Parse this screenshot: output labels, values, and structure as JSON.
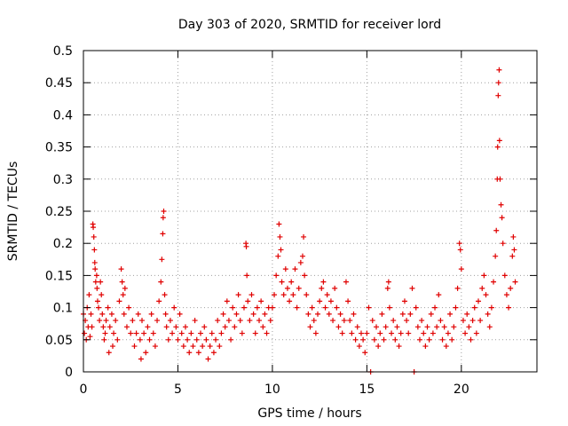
{
  "chart_data": {
    "type": "scatter",
    "title": "Day 303 of 2020, SRMTID for receiver lord",
    "xlabel": "GPS time / hours",
    "ylabel": "SRMTID / TECUs",
    "xlim": [
      0,
      24
    ],
    "ylim": [
      0,
      0.5
    ],
    "xticks": [
      0,
      5,
      10,
      15,
      20
    ],
    "xtick_labels": [
      "0",
      "5",
      "10",
      "15",
      "20"
    ],
    "yticks": [
      0,
      0.05,
      0.1,
      0.15,
      0.2,
      0.25,
      0.3,
      0.35,
      0.4,
      0.45,
      0.5
    ],
    "ytick_labels": [
      "0",
      "0.05",
      "0.1",
      "0.15",
      "0.2",
      "0.25",
      "0.3",
      "0.35",
      "0.4",
      "0.45",
      "0.5"
    ],
    "grid": true,
    "marker": "+",
    "color": "#e00000",
    "series": [
      {
        "name": "SRMTID",
        "points": [
          [
            0.0,
            0.09
          ],
          [
            0.05,
            0.06
          ],
          [
            0.1,
            0.08
          ],
          [
            0.15,
            0.05
          ],
          [
            0.2,
            0.1
          ],
          [
            0.25,
            0.07
          ],
          [
            0.3,
            0.12
          ],
          [
            0.35,
            0.055
          ],
          [
            0.4,
            0.09
          ],
          [
            0.45,
            0.07
          ],
          [
            0.5,
            0.23
          ],
          [
            0.52,
            0.225
          ],
          [
            0.55,
            0.21
          ],
          [
            0.58,
            0.19
          ],
          [
            0.6,
            0.17
          ],
          [
            0.62,
            0.16
          ],
          [
            0.65,
            0.14
          ],
          [
            0.7,
            0.15
          ],
          [
            0.72,
            0.13
          ],
          [
            0.75,
            0.11
          ],
          [
            0.8,
            0.1
          ],
          [
            0.85,
            0.08
          ],
          [
            0.9,
            0.14
          ],
          [
            0.95,
            0.12
          ],
          [
            1.0,
            0.09
          ],
          [
            1.05,
            0.07
          ],
          [
            1.1,
            0.05
          ],
          [
            1.15,
            0.06
          ],
          [
            1.2,
            0.08
          ],
          [
            1.3,
            0.1
          ],
          [
            1.35,
            0.03
          ],
          [
            1.4,
            0.07
          ],
          [
            1.5,
            0.09
          ],
          [
            1.55,
            0.04
          ],
          [
            1.6,
            0.06
          ],
          [
            1.7,
            0.08
          ],
          [
            1.8,
            0.05
          ],
          [
            1.9,
            0.11
          ],
          [
            2.0,
            0.16
          ],
          [
            2.05,
            0.14
          ],
          [
            2.1,
            0.12
          ],
          [
            2.15,
            0.09
          ],
          [
            2.2,
            0.13
          ],
          [
            2.3,
            0.07
          ],
          [
            2.4,
            0.1
          ],
          [
            2.5,
            0.06
          ],
          [
            2.6,
            0.08
          ],
          [
            2.7,
            0.04
          ],
          [
            2.8,
            0.06
          ],
          [
            2.9,
            0.09
          ],
          [
            3.0,
            0.05
          ],
          [
            3.05,
            0.02
          ],
          [
            3.1,
            0.08
          ],
          [
            3.2,
            0.06
          ],
          [
            3.3,
            0.03
          ],
          [
            3.4,
            0.07
          ],
          [
            3.5,
            0.05
          ],
          [
            3.6,
            0.09
          ],
          [
            3.7,
            0.06
          ],
          [
            3.8,
            0.04
          ],
          [
            3.9,
            0.08
          ],
          [
            4.0,
            0.11
          ],
          [
            4.1,
            0.14
          ],
          [
            4.15,
            0.175
          ],
          [
            4.2,
            0.215
          ],
          [
            4.22,
            0.24
          ],
          [
            4.25,
            0.25
          ],
          [
            4.3,
            0.12
          ],
          [
            4.35,
            0.09
          ],
          [
            4.4,
            0.07
          ],
          [
            4.5,
            0.05
          ],
          [
            4.6,
            0.08
          ],
          [
            4.7,
            0.06
          ],
          [
            4.8,
            0.1
          ],
          [
            4.9,
            0.07
          ],
          [
            5.0,
            0.05
          ],
          [
            5.1,
            0.09
          ],
          [
            5.2,
            0.06
          ],
          [
            5.3,
            0.04
          ],
          [
            5.4,
            0.07
          ],
          [
            5.5,
            0.05
          ],
          [
            5.6,
            0.03
          ],
          [
            5.7,
            0.06
          ],
          [
            5.8,
            0.04
          ],
          [
            5.9,
            0.08
          ],
          [
            6.0,
            0.05
          ],
          [
            6.1,
            0.03
          ],
          [
            6.2,
            0.06
          ],
          [
            6.3,
            0.04
          ],
          [
            6.4,
            0.07
          ],
          [
            6.5,
            0.05
          ],
          [
            6.6,
            0.02
          ],
          [
            6.7,
            0.04
          ],
          [
            6.8,
            0.06
          ],
          [
            6.9,
            0.03
          ],
          [
            7.0,
            0.05
          ],
          [
            7.1,
            0.08
          ],
          [
            7.2,
            0.04
          ],
          [
            7.3,
            0.06
          ],
          [
            7.4,
            0.09
          ],
          [
            7.5,
            0.07
          ],
          [
            7.6,
            0.11
          ],
          [
            7.7,
            0.08
          ],
          [
            7.8,
            0.05
          ],
          [
            7.9,
            0.1
          ],
          [
            8.0,
            0.07
          ],
          [
            8.1,
            0.09
          ],
          [
            8.2,
            0.12
          ],
          [
            8.3,
            0.08
          ],
          [
            8.4,
            0.06
          ],
          [
            8.5,
            0.1
          ],
          [
            8.6,
            0.2
          ],
          [
            8.62,
            0.195
          ],
          [
            8.65,
            0.15
          ],
          [
            8.7,
            0.11
          ],
          [
            8.8,
            0.08
          ],
          [
            8.9,
            0.12
          ],
          [
            9.0,
            0.09
          ],
          [
            9.1,
            0.06
          ],
          [
            9.2,
            0.1
          ],
          [
            9.3,
            0.08
          ],
          [
            9.4,
            0.11
          ],
          [
            9.5,
            0.07
          ],
          [
            9.6,
            0.09
          ],
          [
            9.7,
            0.06
          ],
          [
            9.8,
            0.1
          ],
          [
            9.9,
            0.08
          ],
          [
            10.0,
            0.1
          ],
          [
            10.1,
            0.12
          ],
          [
            10.2,
            0.15
          ],
          [
            10.3,
            0.18
          ],
          [
            10.35,
            0.23
          ],
          [
            10.4,
            0.21
          ],
          [
            10.45,
            0.19
          ],
          [
            10.5,
            0.14
          ],
          [
            10.6,
            0.12
          ],
          [
            10.7,
            0.16
          ],
          [
            10.8,
            0.13
          ],
          [
            10.9,
            0.11
          ],
          [
            11.0,
            0.14
          ],
          [
            11.1,
            0.12
          ],
          [
            11.2,
            0.16
          ],
          [
            11.3,
            0.1
          ],
          [
            11.4,
            0.13
          ],
          [
            11.5,
            0.17
          ],
          [
            11.6,
            0.18
          ],
          [
            11.65,
            0.21
          ],
          [
            11.7,
            0.15
          ],
          [
            11.8,
            0.12
          ],
          [
            11.9,
            0.09
          ],
          [
            12.0,
            0.07
          ],
          [
            12.1,
            0.1
          ],
          [
            12.2,
            0.08
          ],
          [
            12.3,
            0.06
          ],
          [
            12.4,
            0.09
          ],
          [
            12.5,
            0.11
          ],
          [
            12.6,
            0.13
          ],
          [
            12.7,
            0.14
          ],
          [
            12.8,
            0.1
          ],
          [
            12.9,
            0.12
          ],
          [
            13.0,
            0.09
          ],
          [
            13.1,
            0.11
          ],
          [
            13.2,
            0.08
          ],
          [
            13.3,
            0.13
          ],
          [
            13.4,
            0.1
          ],
          [
            13.5,
            0.07
          ],
          [
            13.6,
            0.09
          ],
          [
            13.7,
            0.06
          ],
          [
            13.8,
            0.08
          ],
          [
            13.9,
            0.14
          ],
          [
            14.0,
            0.11
          ],
          [
            14.1,
            0.08
          ],
          [
            14.2,
            0.06
          ],
          [
            14.3,
            0.09
          ],
          [
            14.4,
            0.05
          ],
          [
            14.5,
            0.07
          ],
          [
            14.6,
            0.04
          ],
          [
            14.7,
            0.06
          ],
          [
            14.8,
            0.05
          ],
          [
            14.9,
            0.03
          ],
          [
            15.0,
            0.06
          ],
          [
            15.1,
            0.1
          ],
          [
            15.2,
            0.0
          ],
          [
            15.3,
            0.08
          ],
          [
            15.4,
            0.05
          ],
          [
            15.5,
            0.07
          ],
          [
            15.6,
            0.04
          ],
          [
            15.7,
            0.06
          ],
          [
            15.8,
            0.09
          ],
          [
            15.9,
            0.05
          ],
          [
            16.0,
            0.07
          ],
          [
            16.1,
            0.13
          ],
          [
            16.15,
            0.14
          ],
          [
            16.2,
            0.1
          ],
          [
            16.3,
            0.06
          ],
          [
            16.4,
            0.08
          ],
          [
            16.5,
            0.05
          ],
          [
            16.6,
            0.07
          ],
          [
            16.7,
            0.04
          ],
          [
            16.8,
            0.06
          ],
          [
            16.9,
            0.09
          ],
          [
            17.0,
            0.11
          ],
          [
            17.1,
            0.08
          ],
          [
            17.2,
            0.06
          ],
          [
            17.3,
            0.09
          ],
          [
            17.4,
            0.13
          ],
          [
            17.5,
            0.0
          ],
          [
            17.6,
            0.1
          ],
          [
            17.7,
            0.07
          ],
          [
            17.8,
            0.05
          ],
          [
            17.9,
            0.08
          ],
          [
            18.0,
            0.06
          ],
          [
            18.1,
            0.04
          ],
          [
            18.2,
            0.07
          ],
          [
            18.3,
            0.05
          ],
          [
            18.4,
            0.09
          ],
          [
            18.5,
            0.06
          ],
          [
            18.6,
            0.1
          ],
          [
            18.7,
            0.07
          ],
          [
            18.8,
            0.12
          ],
          [
            18.9,
            0.08
          ],
          [
            19.0,
            0.05
          ],
          [
            19.1,
            0.07
          ],
          [
            19.2,
            0.04
          ],
          [
            19.3,
            0.06
          ],
          [
            19.4,
            0.09
          ],
          [
            19.5,
            0.05
          ],
          [
            19.6,
            0.07
          ],
          [
            19.7,
            0.1
          ],
          [
            19.8,
            0.13
          ],
          [
            19.9,
            0.2
          ],
          [
            19.95,
            0.19
          ],
          [
            20.0,
            0.16
          ],
          [
            20.1,
            0.08
          ],
          [
            20.2,
            0.06
          ],
          [
            20.3,
            0.09
          ],
          [
            20.4,
            0.07
          ],
          [
            20.5,
            0.05
          ],
          [
            20.6,
            0.08
          ],
          [
            20.7,
            0.1
          ],
          [
            20.8,
            0.06
          ],
          [
            20.9,
            0.11
          ],
          [
            21.0,
            0.08
          ],
          [
            21.1,
            0.13
          ],
          [
            21.2,
            0.15
          ],
          [
            21.3,
            0.12
          ],
          [
            21.4,
            0.09
          ],
          [
            21.5,
            0.07
          ],
          [
            21.6,
            0.1
          ],
          [
            21.7,
            0.14
          ],
          [
            21.8,
            0.18
          ],
          [
            21.85,
            0.22
          ],
          [
            21.9,
            0.3
          ],
          [
            21.92,
            0.35
          ],
          [
            21.95,
            0.43
          ],
          [
            21.97,
            0.45
          ],
          [
            22.0,
            0.47
          ],
          [
            22.02,
            0.36
          ],
          [
            22.05,
            0.3
          ],
          [
            22.1,
            0.26
          ],
          [
            22.15,
            0.24
          ],
          [
            22.2,
            0.2
          ],
          [
            22.3,
            0.15
          ],
          [
            22.4,
            0.12
          ],
          [
            22.5,
            0.1
          ],
          [
            22.6,
            0.13
          ],
          [
            22.7,
            0.18
          ],
          [
            22.75,
            0.21
          ],
          [
            22.8,
            0.19
          ],
          [
            22.85,
            0.14
          ]
        ]
      }
    ]
  }
}
